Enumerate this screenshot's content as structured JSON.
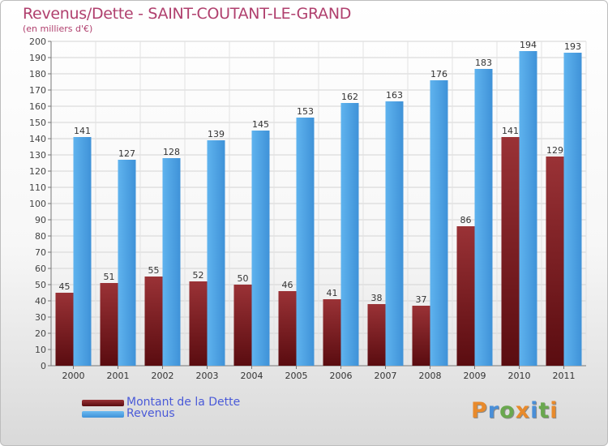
{
  "title": "Revenus/Dette - SAINT-COUTANT-LE-GRAND",
  "subtitle": "(en milliers d'€)",
  "colors": {
    "dette": "#7a2226",
    "revenus": "#4ca3e6",
    "title": "#b0406e"
  },
  "legend": {
    "dette_label": "Montant de la Dette",
    "revenus_label": "Revenus"
  },
  "logo": "Proxiti",
  "chart_data": {
    "type": "bar",
    "title": "Revenus/Dette - SAINT-COUTANT-LE-GRAND",
    "ylabel": "(en milliers d'€)",
    "ylim": [
      0,
      200
    ],
    "ytick_step": 10,
    "grid": true,
    "legend_position": "bottom-left",
    "categories": [
      "2000",
      "2001",
      "2002",
      "2003",
      "2004",
      "2005",
      "2006",
      "2007",
      "2008",
      "2009",
      "2010",
      "2011"
    ],
    "series": [
      {
        "name": "Montant de la Dette",
        "values": [
          45,
          51,
          55,
          52,
          50,
          46,
          41,
          38,
          37,
          86,
          141,
          129
        ]
      },
      {
        "name": "Revenus",
        "values": [
          141,
          127,
          128,
          139,
          145,
          153,
          162,
          163,
          176,
          183,
          194,
          193
        ]
      }
    ]
  }
}
